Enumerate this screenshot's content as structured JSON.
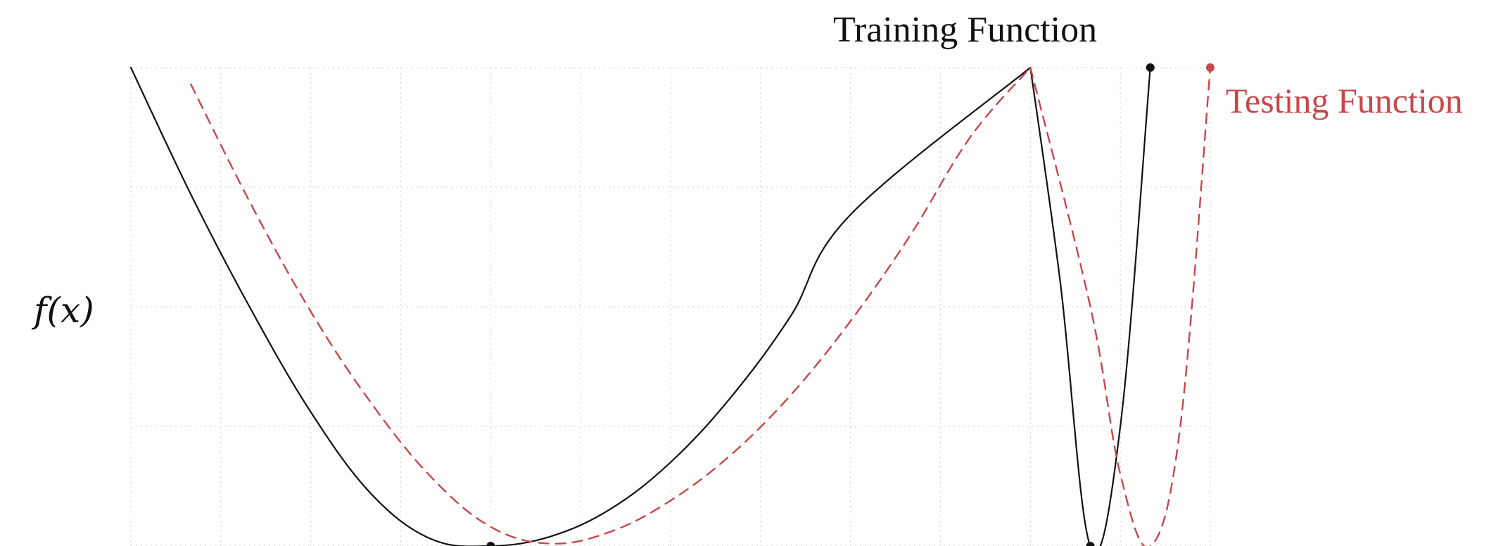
{
  "chart_data": {
    "type": "line",
    "title": "",
    "xlabel": "",
    "ylabel": "f(x)",
    "xlim": [
      0,
      9
    ],
    "ylim": [
      0,
      4
    ],
    "grid": true,
    "grid_style": "dotted",
    "colors": {
      "training": "#111111",
      "testing": "#c8474a",
      "grid": "#d4d4d4",
      "background": "#ffffff"
    },
    "series": [
      {
        "name": "Training Function",
        "style": "solid",
        "x": [
          0.0,
          0.5,
          1.0,
          1.5,
          2.0,
          2.5,
          3.0,
          3.5,
          4.0,
          4.5,
          5.0,
          5.5,
          6.0,
          7.5,
          7.75,
          8.0,
          8.25,
          8.5
        ],
        "y": [
          4.0,
          2.94,
          1.98,
          1.12,
          0.44,
          0.06,
          0.0,
          0.08,
          0.31,
          0.7,
          1.24,
          1.92,
          2.77,
          4.0,
          2.2,
          0.0,
          1.0,
          4.0
        ],
        "marker_points": [
          {
            "x": 3.0,
            "y": 0.0
          },
          {
            "x": 8.0,
            "y": 0.0
          },
          {
            "x": 8.5,
            "y": 4.0
          }
        ]
      },
      {
        "name": "Testing Function",
        "style": "dashed",
        "x": [
          0.5,
          1.0,
          1.5,
          2.0,
          2.5,
          3.0,
          3.5,
          4.0,
          4.5,
          5.0,
          5.5,
          6.0,
          6.5,
          7.0,
          7.5,
          8.0,
          8.25,
          8.5,
          8.75,
          9.0
        ],
        "y": [
          3.86,
          2.86,
          1.96,
          1.2,
          0.58,
          0.16,
          0.02,
          0.12,
          0.38,
          0.76,
          1.26,
          1.88,
          2.6,
          3.42,
          4.0,
          2.0,
          0.6,
          0.0,
          1.0,
          4.0
        ],
        "marker_points": [
          {
            "x": 9.0,
            "y": 4.0
          }
        ]
      }
    ],
    "annotations": [
      {
        "text": "Training Function",
        "series": "Training Function"
      },
      {
        "text": "Testing Function",
        "series": "Testing Function"
      }
    ]
  }
}
